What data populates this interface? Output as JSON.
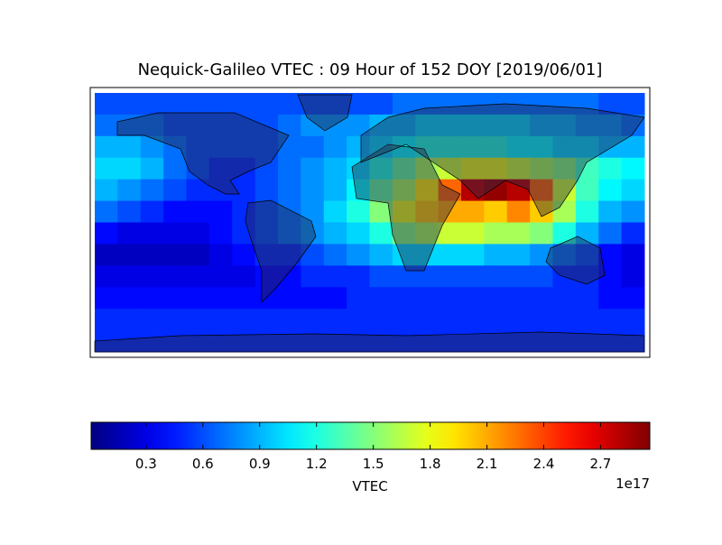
{
  "chart_data": {
    "type": "heatmap",
    "title": "Nequick-Galileo VTEC : 09 Hour of 152 DOY [2019/06/01]",
    "colorbar": {
      "label": "VTEC",
      "offset": "1e17",
      "lim": [
        0.01,
        2.96
      ],
      "ticks": [
        0.3,
        0.6,
        0.9,
        1.2,
        1.5,
        1.8,
        2.1,
        2.4,
        2.7
      ]
    },
    "values": [
      [
        0.6,
        0.6,
        0.6,
        0.6,
        0.6,
        0.6,
        0.6,
        0.6,
        0.6,
        0.6,
        0.6,
        0.6,
        0.6,
        0.7,
        0.7,
        0.7,
        0.7,
        0.7,
        0.7,
        0.7,
        0.7,
        0.7,
        0.6,
        0.6
      ],
      [
        0.7,
        0.7,
        0.7,
        0.6,
        0.6,
        0.6,
        0.6,
        0.6,
        0.7,
        0.8,
        0.8,
        0.8,
        0.9,
        0.9,
        1.0,
        1.0,
        1.0,
        1.0,
        1.0,
        0.9,
        0.9,
        0.8,
        0.8,
        0.7
      ],
      [
        0.9,
        0.9,
        0.8,
        0.7,
        0.6,
        0.6,
        0.6,
        0.6,
        0.7,
        0.7,
        0.8,
        0.9,
        1.0,
        1.1,
        1.2,
        1.2,
        1.2,
        1.2,
        1.1,
        1.1,
        1.0,
        1.0,
        0.9,
        0.9
      ],
      [
        1.0,
        1.0,
        0.9,
        0.7,
        0.6,
        0.5,
        0.5,
        0.6,
        0.7,
        0.8,
        0.9,
        1.0,
        1.2,
        1.4,
        1.6,
        1.7,
        1.8,
        1.8,
        1.7,
        1.6,
        1.5,
        1.3,
        1.2,
        1.1
      ],
      [
        0.9,
        0.8,
        0.7,
        0.6,
        0.5,
        0.5,
        0.5,
        0.6,
        0.7,
        0.8,
        0.9,
        1.1,
        1.4,
        1.6,
        1.9,
        2.3,
        2.8,
        2.9,
        2.8,
        2.3,
        1.7,
        1.3,
        1.1,
        1.0
      ],
      [
        0.7,
        0.6,
        0.5,
        0.4,
        0.4,
        0.4,
        0.5,
        0.6,
        0.7,
        0.8,
        1.0,
        1.2,
        1.5,
        1.8,
        2.0,
        2.1,
        2.1,
        2.0,
        2.2,
        2.0,
        1.6,
        1.2,
        0.9,
        0.8
      ],
      [
        0.4,
        0.3,
        0.3,
        0.3,
        0.3,
        0.4,
        0.5,
        0.6,
        0.7,
        0.8,
        0.9,
        1.0,
        1.2,
        1.5,
        1.6,
        1.7,
        1.7,
        1.6,
        1.6,
        1.5,
        1.2,
        0.9,
        0.7,
        0.5
      ],
      [
        0.2,
        0.2,
        0.2,
        0.2,
        0.2,
        0.3,
        0.4,
        0.5,
        0.5,
        0.6,
        0.7,
        0.8,
        0.9,
        1.0,
        1.0,
        1.0,
        1.0,
        0.9,
        0.9,
        0.8,
        0.7,
        0.6,
        0.4,
        0.3
      ],
      [
        0.3,
        0.3,
        0.3,
        0.3,
        0.3,
        0.3,
        0.3,
        0.4,
        0.4,
        0.5,
        0.5,
        0.5,
        0.6,
        0.6,
        0.6,
        0.6,
        0.6,
        0.6,
        0.6,
        0.6,
        0.5,
        0.5,
        0.4,
        0.3
      ],
      [
        0.4,
        0.4,
        0.4,
        0.4,
        0.4,
        0.4,
        0.4,
        0.4,
        0.4,
        0.4,
        0.4,
        0.5,
        0.5,
        0.5,
        0.5,
        0.5,
        0.5,
        0.5,
        0.5,
        0.5,
        0.5,
        0.5,
        0.4,
        0.4
      ],
      [
        0.5,
        0.5,
        0.5,
        0.5,
        0.5,
        0.5,
        0.5,
        0.5,
        0.5,
        0.5,
        0.5,
        0.5,
        0.5,
        0.5,
        0.5,
        0.5,
        0.5,
        0.5,
        0.5,
        0.5,
        0.5,
        0.5,
        0.5,
        0.5
      ],
      [
        0.5,
        0.5,
        0.5,
        0.5,
        0.5,
        0.5,
        0.5,
        0.5,
        0.5,
        0.5,
        0.5,
        0.5,
        0.5,
        0.5,
        0.5,
        0.5,
        0.5,
        0.5,
        0.5,
        0.5,
        0.5,
        0.5,
        0.5,
        0.5
      ]
    ]
  }
}
